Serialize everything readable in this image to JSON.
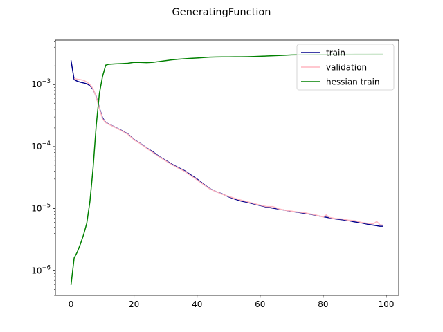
{
  "chart_data": {
    "type": "line",
    "title": "GeneratingFunction",
    "xlabel": "",
    "ylabel": "",
    "yscale": "log",
    "xlim": [
      -4.95,
      103.95
    ],
    "ylim": [
      4e-07,
      0.0052
    ],
    "xticks": [
      0,
      20,
      40,
      60,
      80,
      100
    ],
    "yticks": [
      {
        "value": 1e-06,
        "mantissa": "10",
        "exponent": "−6"
      },
      {
        "value": 1e-05,
        "mantissa": "10",
        "exponent": "−5"
      },
      {
        "value": 0.0001,
        "mantissa": "10",
        "exponent": "−4"
      },
      {
        "value": 0.001,
        "mantissa": "10",
        "exponent": "−3"
      }
    ],
    "grid": false,
    "legend_position": "upper right",
    "series": [
      {
        "name": "train",
        "color": "#00008b",
        "x": [
          0,
          1,
          2,
          3,
          4,
          5,
          6,
          7,
          8,
          9,
          10,
          11,
          12,
          14,
          16,
          18,
          20,
          22,
          24,
          26,
          28,
          30,
          32,
          34,
          36,
          38,
          40,
          42,
          44,
          46,
          48,
          50,
          52,
          54,
          56,
          58,
          60,
          62,
          64,
          66,
          68,
          70,
          72,
          74,
          76,
          78,
          80,
          82,
          84,
          86,
          88,
          90,
          92,
          94,
          96,
          98,
          99
        ],
        "y": [
          0.00245,
          0.0012,
          0.00113,
          0.00109,
          0.00106,
          0.00103,
          0.00096,
          0.00084,
          0.00064,
          0.00042,
          0.00029,
          0.000245,
          0.00023,
          0.000205,
          0.000182,
          0.00016,
          0.00013,
          0.000112,
          9.5e-05,
          8.2e-05,
          6.9e-05,
          6e-05,
          5.2e-05,
          4.6e-05,
          4.1e-05,
          3.5e-05,
          3e-05,
          2.5e-05,
          2.1e-05,
          1.88e-05,
          1.72e-05,
          1.55e-05,
          1.42e-05,
          1.32e-05,
          1.26e-05,
          1.19e-05,
          1.12e-05,
          1.06e-05,
          1.02e-05,
          9.8e-06,
          9.4e-06,
          9e-06,
          8.7e-06,
          8.4e-06,
          8.1e-06,
          7.7e-06,
          7.4e-06,
          7.1e-06,
          6.8e-06,
          6.6e-06,
          6.4e-06,
          6.1e-06,
          5.9e-06,
          5.6e-06,
          5.4e-06,
          5.2e-06,
          5.2e-06
        ]
      },
      {
        "name": "validation",
        "color": "#ffb6c1",
        "x": [
          1,
          2,
          3,
          4,
          5,
          6,
          7,
          8,
          9,
          10,
          11,
          12,
          14,
          16,
          18,
          20,
          22,
          24,
          26,
          28,
          30,
          32,
          34,
          36,
          38,
          40,
          42,
          44,
          46,
          48,
          50,
          52,
          54,
          56,
          58,
          60,
          62,
          64,
          66,
          68,
          70,
          72,
          74,
          76,
          78,
          80,
          81,
          82,
          84,
          86,
          88,
          90,
          92,
          94,
          96,
          97,
          98,
          99
        ],
        "y": [
          0.00125,
          0.00122,
          0.0012,
          0.00117,
          0.0011,
          0.001,
          0.00086,
          0.00063,
          0.00041,
          0.00028,
          0.000242,
          0.000228,
          0.000204,
          0.00018,
          0.000158,
          0.000128,
          0.000111,
          9.4e-05,
          8e-05,
          6.8e-05,
          5.9e-05,
          5.1e-05,
          4.5e-05,
          4e-05,
          3.4e-05,
          2.9e-05,
          2.45e-05,
          2.08e-05,
          1.87e-05,
          1.7e-05,
          1.58e-05,
          1.46e-05,
          1.37e-05,
          1.29e-05,
          1.21e-05,
          1.14e-05,
          1.08e-05,
          1.08e-05,
          9.9e-06,
          9.4e-06,
          9.1e-06,
          8.8e-06,
          8.6e-06,
          8.2e-06,
          7.8e-06,
          7.3e-06,
          7.9e-06,
          7.2e-06,
          6.9e-06,
          6.8e-06,
          6.5e-06,
          6.4e-06,
          6e-06,
          5.8e-06,
          5.7e-06,
          6.2e-06,
          5.5e-06,
          5.4e-06
        ]
      },
      {
        "name": "hessian train",
        "color": "#008000",
        "x": [
          0,
          1,
          2,
          3,
          4,
          5,
          6,
          7,
          8,
          9,
          10,
          11,
          12,
          14,
          16,
          18,
          20,
          22,
          24,
          26,
          28,
          30,
          32,
          34,
          36,
          38,
          40,
          42,
          44,
          46,
          48,
          50,
          52,
          54,
          56,
          58,
          60,
          62,
          64,
          66,
          68,
          70,
          72,
          74,
          76,
          78,
          80,
          82,
          84,
          86,
          88,
          90,
          92,
          94,
          96,
          98,
          99
        ],
        "y": [
          5.9e-07,
          1.6e-06,
          2e-06,
          2.7e-06,
          3.8e-06,
          5.8e-06,
          1.3e-05,
          4.5e-05,
          0.00022,
          0.00072,
          0.00135,
          0.00205,
          0.00212,
          0.00215,
          0.00217,
          0.0022,
          0.00228,
          0.00227,
          0.00225,
          0.00228,
          0.00235,
          0.00242,
          0.0025,
          0.00256,
          0.0026,
          0.00264,
          0.00268,
          0.00272,
          0.00276,
          0.00278,
          0.00279,
          0.00279,
          0.0028,
          0.0028,
          0.00281,
          0.00283,
          0.00285,
          0.00288,
          0.00291,
          0.00294,
          0.00297,
          0.003,
          0.00301,
          0.00302,
          0.00303,
          0.00304,
          0.00305,
          0.00305,
          0.00306,
          0.00306,
          0.00306,
          0.00307,
          0.00307,
          0.00307,
          0.00308,
          0.00308,
          0.00308
        ]
      }
    ]
  }
}
